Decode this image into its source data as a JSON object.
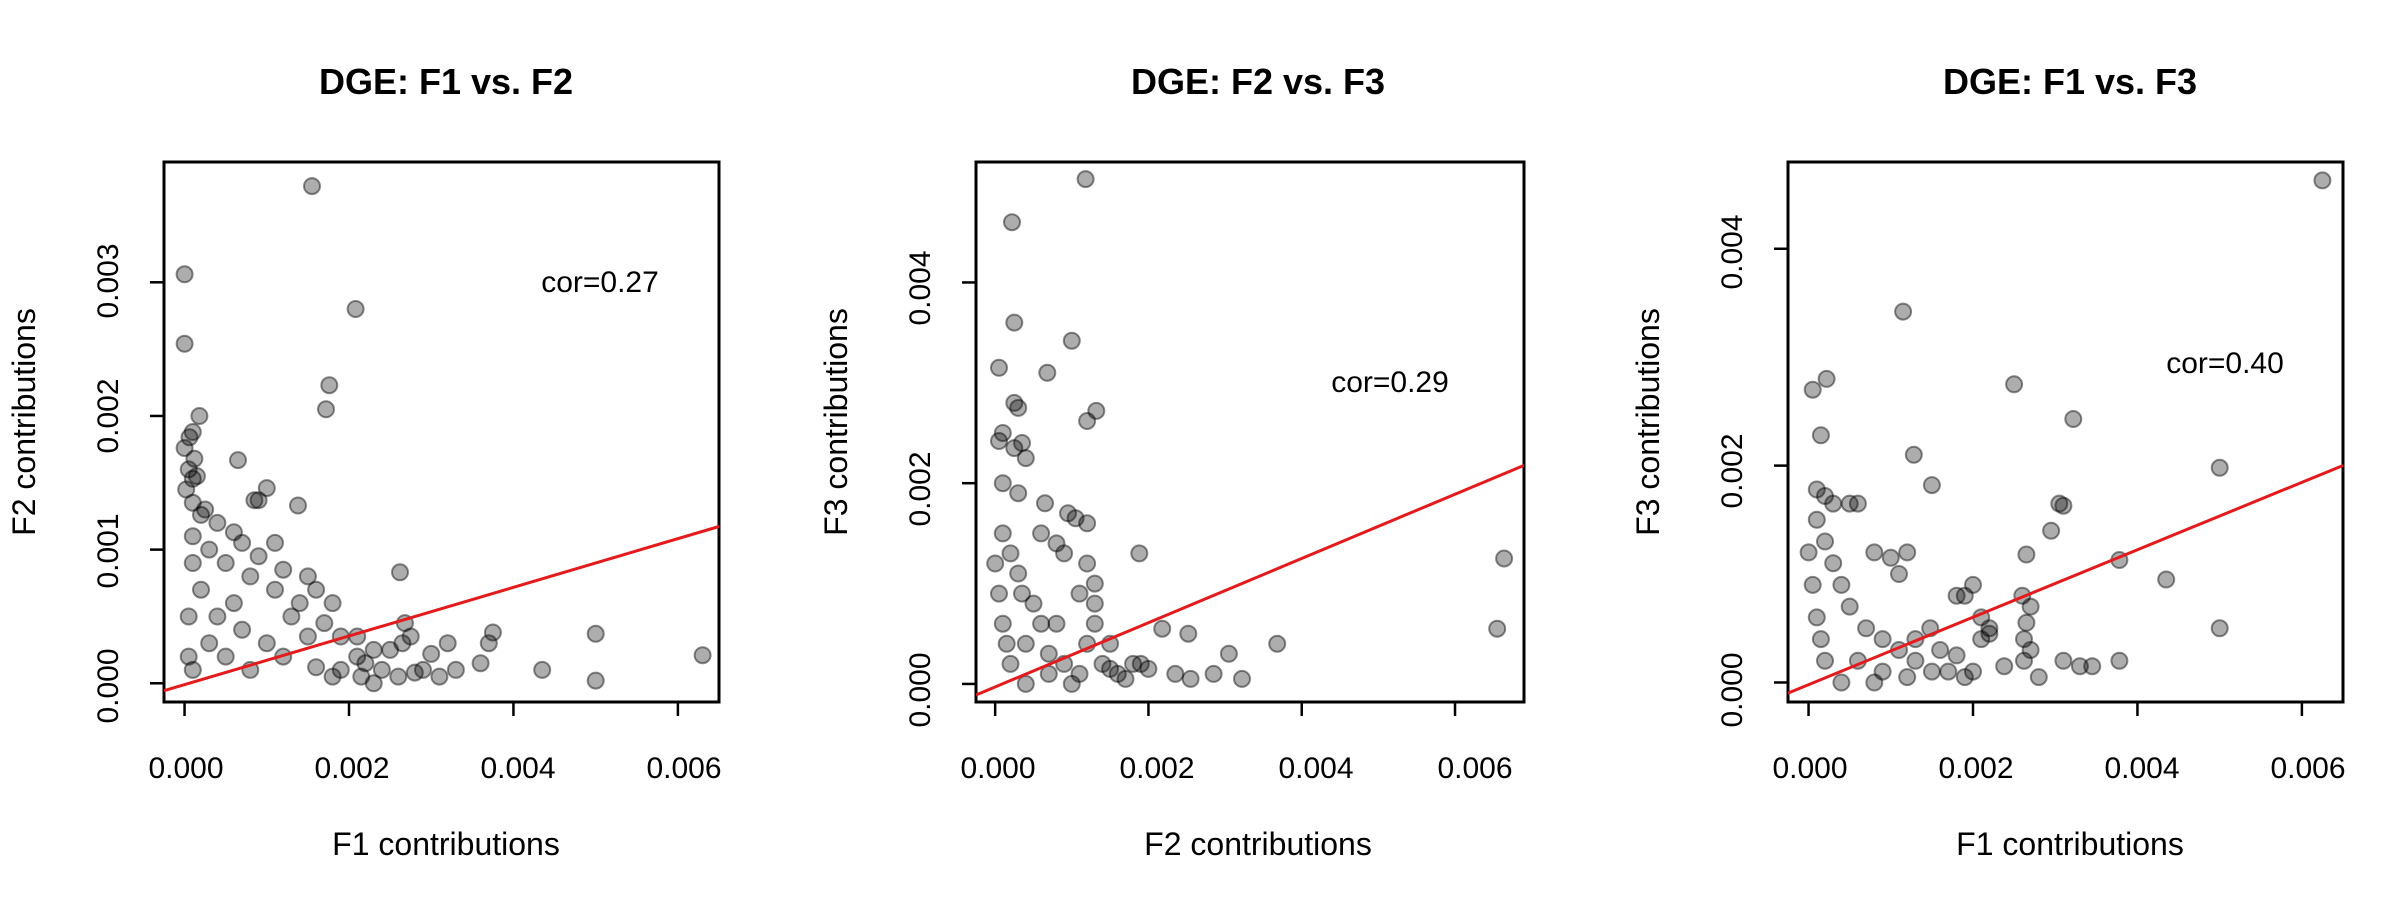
{
  "chart_data": [
    {
      "type": "scatter",
      "title": "DGE: F1 vs. F2",
      "xlabel": "F1 contributions",
      "ylabel": "F2 contributions",
      "xlim": [
        -0.00025,
        0.0065
      ],
      "ylim": [
        -0.00014,
        0.0039
      ],
      "xticks": [
        "0.000",
        "0.002",
        "0.004",
        "0.006"
      ],
      "yticks": [
        "0.000",
        "0.001",
        "0.002",
        "0.003"
      ],
      "annotation": "cor=0.27",
      "regression_line": {
        "color": "#e41a1c",
        "intercept": -1e-05,
        "slope": 0.182
      },
      "points": [
        [
          0.00155,
          0.00372
        ],
        [
          0.0,
          0.00306
        ],
        [
          0.00208,
          0.0028
        ],
        [
          0.0,
          0.00254
        ],
        [
          0.00176,
          0.00223
        ],
        [
          0.00172,
          0.00205
        ],
        [
          0.00018,
          0.002
        ],
        [
          0.0001,
          0.00188
        ],
        [
          6e-05,
          0.00184
        ],
        [
          0.0,
          0.00176
        ],
        [
          0.00012,
          0.00168
        ],
        [
          5e-05,
          0.0016
        ],
        [
          0.00015,
          0.00155
        ],
        [
          0.0001,
          0.00153
        ],
        [
          2e-05,
          0.00145
        ],
        [
          0.00065,
          0.00167
        ],
        [
          0.001,
          0.00146
        ],
        [
          0.0009,
          0.00137
        ],
        [
          0.00085,
          0.00137
        ],
        [
          0.00138,
          0.00133
        ],
        [
          0.0001,
          0.00135
        ],
        [
          0.00025,
          0.0013
        ],
        [
          0.0002,
          0.00126
        ],
        [
          0.0004,
          0.0012
        ],
        [
          0.0001,
          0.0011
        ],
        [
          0.0006,
          0.00113
        ],
        [
          0.0007,
          0.00105
        ],
        [
          0.0011,
          0.00105
        ],
        [
          0.0009,
          0.00095
        ],
        [
          0.0012,
          0.00085
        ],
        [
          0.0015,
          0.0008
        ],
        [
          0.0016,
          0.0007
        ],
        [
          0.0018,
          0.0006
        ],
        [
          0.0014,
          0.0006
        ],
        [
          0.0011,
          0.0007
        ],
        [
          0.0008,
          0.0008
        ],
        [
          0.0005,
          0.0009
        ],
        [
          0.0003,
          0.001
        ],
        [
          0.00262,
          0.00083
        ],
        [
          0.0013,
          0.0005
        ],
        [
          0.0019,
          0.00035
        ],
        [
          0.0021,
          0.00035
        ],
        [
          0.0017,
          0.00045
        ],
        [
          0.0015,
          0.00035
        ],
        [
          0.00268,
          0.00045
        ],
        [
          0.00275,
          0.00035
        ],
        [
          0.00265,
          0.0003
        ],
        [
          0.0032,
          0.0003
        ],
        [
          0.0037,
          0.0003
        ],
        [
          0.00375,
          0.00038
        ],
        [
          0.003,
          0.00022
        ],
        [
          0.0025,
          0.00025
        ],
        [
          0.0023,
          0.00025
        ],
        [
          0.0022,
          0.00015
        ],
        [
          0.0024,
          0.0001
        ],
        [
          0.0026,
          5e-05
        ],
        [
          0.0029,
          0.0001
        ],
        [
          0.0031,
          5e-05
        ],
        [
          0.0033,
          0.0001
        ],
        [
          0.0036,
          0.00015
        ],
        [
          0.0028,
          8e-05
        ],
        [
          0.00435,
          0.0001
        ],
        [
          0.005,
          0.00037
        ],
        [
          0.005,
          2e-05
        ],
        [
          0.0063,
          0.00021
        ],
        [
          0.0019,
          0.0001
        ],
        [
          0.0018,
          5e-05
        ],
        [
          0.0016,
          0.00012
        ],
        [
          0.00215,
          5e-05
        ],
        [
          0.0023,
          0.0
        ],
        [
          0.0021,
          0.0002
        ],
        [
          0.0012,
          0.0002
        ],
        [
          0.001,
          0.0003
        ],
        [
          0.0007,
          0.0004
        ],
        [
          0.0006,
          0.0006
        ],
        [
          0.0004,
          0.0005
        ],
        [
          0.0002,
          0.0007
        ],
        [
          0.0001,
          0.0009
        ],
        [
          5e-05,
          0.0005
        ],
        [
          0.0003,
          0.0003
        ],
        [
          0.0005,
          0.0002
        ],
        [
          0.0008,
          0.0001
        ],
        [
          0.0001,
          0.0001
        ],
        [
          5e-05,
          0.0002
        ]
      ]
    },
    {
      "type": "scatter",
      "title": "DGE: F2 vs. F3",
      "xlabel": "F2 contributions",
      "ylabel": "F3 contributions",
      "xlim": [
        -0.00025,
        0.0069
      ],
      "ylim": [
        -0.00018,
        0.0052
      ],
      "xticks": [
        "0.000",
        "0.002",
        "0.004",
        "0.006"
      ],
      "yticks": [
        "0.000",
        "0.002",
        "0.004"
      ],
      "annotation": "cor=0.29",
      "regression_line": {
        "color": "#e41a1c",
        "intercept": -3e-05,
        "slope": 0.32
      },
      "points": [
        [
          0.00118,
          0.00503
        ],
        [
          0.00022,
          0.0046
        ],
        [
          0.00025,
          0.0036
        ],
        [
          0.001,
          0.00342
        ],
        [
          5e-05,
          0.00315
        ],
        [
          0.00068,
          0.0031
        ],
        [
          0.00025,
          0.0028
        ],
        [
          0.0003,
          0.00275
        ],
        [
          0.00132,
          0.00272
        ],
        [
          0.0012,
          0.00262
        ],
        [
          0.0001,
          0.0025
        ],
        [
          5e-05,
          0.00242
        ],
        [
          0.00035,
          0.0024
        ],
        [
          0.00025,
          0.00235
        ],
        [
          0.0004,
          0.00225
        ],
        [
          0.0001,
          0.002
        ],
        [
          0.0003,
          0.0019
        ],
        [
          0.00065,
          0.0018
        ],
        [
          0.00095,
          0.0017
        ],
        [
          0.00105,
          0.00165
        ],
        [
          0.0012,
          0.0016
        ],
        [
          0.00188,
          0.0013
        ],
        [
          0.0006,
          0.0015
        ],
        [
          0.0008,
          0.0014
        ],
        [
          0.0009,
          0.0013
        ],
        [
          0.0012,
          0.0012
        ],
        [
          0.0013,
          0.001
        ],
        [
          0.0011,
          0.0009
        ],
        [
          0.0013,
          0.0008
        ],
        [
          0.0013,
          0.0006
        ],
        [
          0.0015,
          0.0004
        ],
        [
          0.0014,
          0.0002
        ],
        [
          0.0018,
          0.0002
        ],
        [
          0.002,
          0.00015
        ],
        [
          0.00218,
          0.00055
        ],
        [
          0.00252,
          0.0005
        ],
        [
          0.00305,
          0.0003
        ],
        [
          0.00368,
          0.0004
        ],
        [
          0.00285,
          0.0001
        ],
        [
          0.00322,
          5e-05
        ],
        [
          0.00255,
          5e-05
        ],
        [
          0.00235,
          0.0001
        ],
        [
          0.0016,
          0.0001
        ],
        [
          0.0017,
          5e-05
        ],
        [
          0.0015,
          0.00015
        ],
        [
          0.0011,
          0.0001
        ],
        [
          0.0009,
          0.0002
        ],
        [
          0.0007,
          0.0003
        ],
        [
          0.0006,
          0.0006
        ],
        [
          0.0005,
          0.0008
        ],
        [
          0.0003,
          0.0011
        ],
        [
          0.0002,
          0.0013
        ],
        [
          0.0001,
          0.0015
        ],
        [
          0.0,
          0.0012
        ],
        [
          5e-05,
          0.0009
        ],
        [
          0.0001,
          0.0006
        ],
        [
          0.00015,
          0.0004
        ],
        [
          0.0002,
          0.0002
        ],
        [
          0.0004,
          0.0004
        ],
        [
          0.0008,
          0.0006
        ],
        [
          0.00664,
          0.00125
        ],
        [
          0.00655,
          0.00055
        ],
        [
          0.0019,
          0.0002
        ],
        [
          0.0012,
          0.0004
        ],
        [
          0.001,
          0.0
        ],
        [
          0.0007,
          0.0001
        ],
        [
          0.0004,
          0.0
        ],
        [
          0.00035,
          0.0009
        ]
      ]
    },
    {
      "type": "scatter",
      "title": "DGE: F1 vs. F3",
      "xlabel": "F1 contributions",
      "ylabel": "F3 contributions",
      "xlim": [
        -0.00025,
        0.0065
      ],
      "ylim": [
        -0.00018,
        0.0048
      ],
      "xticks": [
        "0.000",
        "0.002",
        "0.004",
        "0.006"
      ],
      "yticks": [
        "0.000",
        "0.002",
        "0.004"
      ],
      "annotation": "cor=0.40",
      "regression_line": {
        "color": "#e41a1c",
        "intercept": -2e-05,
        "slope": 0.311
      },
      "points": [
        [
          0.00625,
          0.00463
        ],
        [
          0.00115,
          0.00342
        ],
        [
          0.0025,
          0.00275
        ],
        [
          0.00022,
          0.0028
        ],
        [
          5e-05,
          0.0027
        ],
        [
          0.00015,
          0.00228
        ],
        [
          0.00322,
          0.00243
        ],
        [
          0.00128,
          0.0021
        ],
        [
          0.0015,
          0.00182
        ],
        [
          0.005,
          0.00198
        ],
        [
          0.0001,
          0.00178
        ],
        [
          0.0002,
          0.00172
        ],
        [
          0.0003,
          0.00165
        ],
        [
          0.0005,
          0.00165
        ],
        [
          0.0006,
          0.00165
        ],
        [
          0.00305,
          0.00165
        ],
        [
          0.0031,
          0.00163
        ],
        [
          0.00295,
          0.0014
        ],
        [
          0.00265,
          0.00118
        ],
        [
          0.00378,
          0.00113
        ],
        [
          0.00435,
          0.00095
        ],
        [
          0.0012,
          0.0012
        ],
        [
          0.001,
          0.00115
        ],
        [
          0.0008,
          0.0012
        ],
        [
          0.0011,
          0.001
        ],
        [
          0.0018,
          0.0008
        ],
        [
          0.002,
          0.0009
        ],
        [
          0.0019,
          0.0008
        ],
        [
          0.0026,
          0.0008
        ],
        [
          0.0027,
          0.0007
        ],
        [
          0.0021,
          0.0006
        ],
        [
          0.0022,
          0.0005
        ],
        [
          0.00148,
          0.0005
        ],
        [
          0.0013,
          0.0004
        ],
        [
          0.0016,
          0.0003
        ],
        [
          0.0018,
          0.00025
        ],
        [
          0.00265,
          0.00055
        ],
        [
          0.00262,
          0.0004
        ],
        [
          0.0027,
          0.0003
        ],
        [
          0.00262,
          0.0002
        ],
        [
          0.00238,
          0.00015
        ],
        [
          0.0022,
          0.00045
        ],
        [
          0.0021,
          0.0004
        ],
        [
          0.0028,
          5e-05
        ],
        [
          0.0031,
          0.0002
        ],
        [
          0.0033,
          0.00015
        ],
        [
          0.00345,
          0.00015
        ],
        [
          0.00378,
          0.0002
        ],
        [
          0.005,
          0.0005
        ],
        [
          0.002,
          0.0001
        ],
        [
          0.0019,
          5e-05
        ],
        [
          0.0017,
          0.0001
        ],
        [
          0.0015,
          0.0001
        ],
        [
          0.0013,
          0.0002
        ],
        [
          0.0011,
          0.0003
        ],
        [
          0.0009,
          0.0004
        ],
        [
          0.0007,
          0.0005
        ],
        [
          0.0005,
          0.0007
        ],
        [
          0.0004,
          0.0009
        ],
        [
          0.0003,
          0.0011
        ],
        [
          0.0002,
          0.0013
        ],
        [
          0.0001,
          0.0015
        ],
        [
          0.0,
          0.0012
        ],
        [
          5e-05,
          0.0009
        ],
        [
          0.0001,
          0.0006
        ],
        [
          0.00015,
          0.0004
        ],
        [
          0.0002,
          0.0002
        ],
        [
          0.0006,
          0.0002
        ],
        [
          0.0009,
          0.0001
        ],
        [
          0.0012,
          5e-05
        ],
        [
          0.0008,
          0.0
        ],
        [
          0.0004,
          0.0
        ]
      ]
    }
  ]
}
